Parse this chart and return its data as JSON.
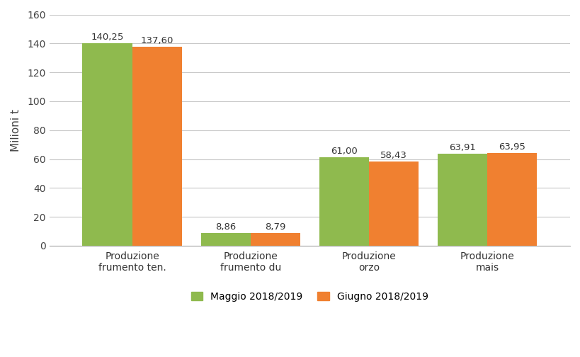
{
  "categories": [
    "Produzione\nfrumento ten.",
    "Produzione\nfrumento du",
    "Produzione\norzo",
    "Produzione\nmais"
  ],
  "maggio_values": [
    140.25,
    8.86,
    61.0,
    63.91
  ],
  "giugno_values": [
    137.6,
    8.79,
    58.43,
    63.95
  ],
  "maggio_labels": [
    "140,25",
    "8,86",
    "61,00",
    "63,91"
  ],
  "giugno_labels": [
    "137,60",
    "8,79",
    "58,43",
    "63,95"
  ],
  "color_maggio": "#8fba4e",
  "color_giugno": "#f08030",
  "ylabel": "Milioni t",
  "ylim": [
    0,
    160
  ],
  "yticks": [
    0,
    20,
    40,
    60,
    80,
    100,
    120,
    140,
    160
  ],
  "legend_maggio": "Maggio 2018/2019",
  "legend_giugno": "Giugno 2018/2019",
  "bar_width": 0.42,
  "label_fontsize": 9.5,
  "tick_fontsize": 10,
  "ylabel_fontsize": 11,
  "legend_fontsize": 10,
  "background_color": "#ffffff",
  "grid_color": "#c8c8c8"
}
